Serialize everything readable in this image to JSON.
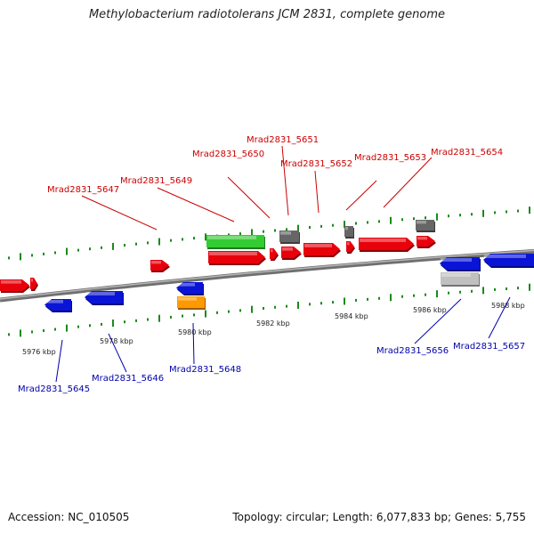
{
  "title": "Methylobacterium radiotolerans JCM 2831, complete genome",
  "footer": {
    "accession": "Accession: NC_010505",
    "summary": "Topology: circular; Length: 6,077,833 bp; Genes: 5,755"
  },
  "colors": {
    "plus_strand_gene": "#e8000b",
    "minus_strand_gene": "#0a14d6",
    "rna_gene": "#33cc33",
    "other_feature": "#666666",
    "pseudo_feature": "#c0c0c0",
    "orange_feature": "#ff9900",
    "plus_label": "#cc0000",
    "minus_label": "#0000aa",
    "backbone": "#8a8a8a",
    "tick": "#1a8a1a"
  },
  "scale_labels": [
    "5976 kbp",
    "5978 kbp",
    "5980 kbp",
    "5982 kbp",
    "5984 kbp",
    "5986 kbp",
    "5988 kbp"
  ],
  "plus_labels": [
    "Mrad2831_5647",
    "Mrad2831_5649",
    "Mrad2831_5650",
    "Mrad2831_5651",
    "Mrad2831_5652",
    "Mrad2831_5653",
    "Mrad2831_5654"
  ],
  "minus_labels": [
    "Mrad2831_5645",
    "Mrad2831_5646",
    "Mrad2831_5648",
    "Mrad2831_5656",
    "Mrad2831_5657"
  ]
}
